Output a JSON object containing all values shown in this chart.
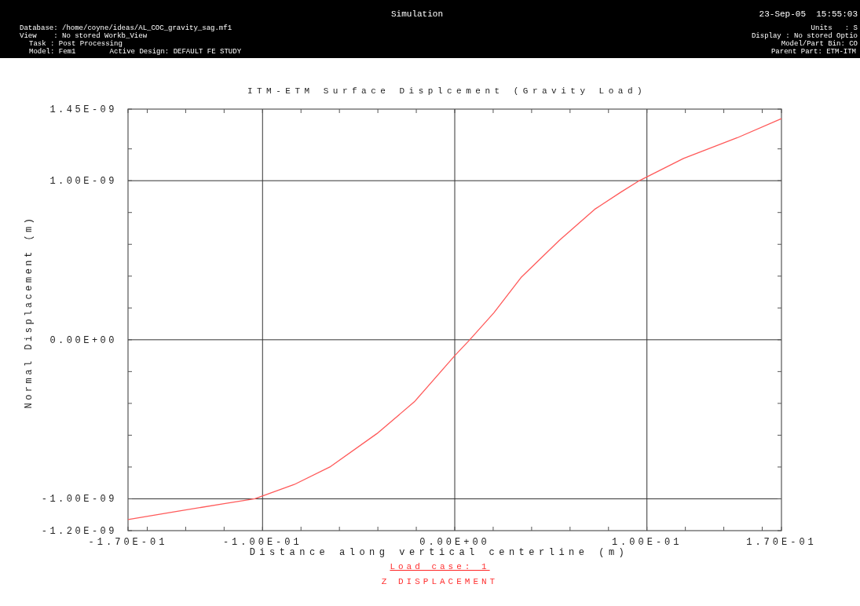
{
  "chart_data": {
    "type": "line",
    "title": "ITM-ETM Surface Displcement (Gravity Load)",
    "xlabel": "Distance along vertical centerline (m)",
    "ylabel": "Normal Displacement (m)",
    "annotations": [
      "Simulation",
      "23-Sep-05  15:55:03",
      "Database: /home/coyne/ideas/AL_COC_gravity_sag.mf1",
      "View    : No stored Workb_View",
      "Task : Post Processing",
      "Model: Fem1        Active Design: DEFAULT FE STUDY",
      "Units   : S",
      "Display : No stored Optio",
      "Model/Part Bin: CO",
      "Parent Part: ETM-ITM",
      "Load case: 1",
      "Z DISPLACEMENT"
    ],
    "x": [
      -0.17,
      -0.145,
      -0.12,
      -0.104,
      -0.0835,
      -0.065,
      -0.0405,
      -0.021,
      0,
      0.0078,
      0.0204,
      0.0344,
      0.0544,
      0.0728,
      0.0867,
      0.0953,
      0.119,
      0.147,
      0.17
    ],
    "series": [
      {
        "color": "#ff5a5a",
        "values": [
          -1.13e-09,
          -1.08e-09,
          -1.03e-09,
          -1e-09,
          -9.1e-10,
          -8e-10,
          -5.9e-10,
          -3.9e-10,
          -1e-10,
          0,
          1.7e-10,
          3.9e-10,
          6.25e-10,
          8.2e-10,
          9.3e-10,
          9.95e-10,
          1.14e-09,
          1.27e-09,
          1.39e-09
        ]
      }
    ],
    "xlim": [
      -0.17,
      0.17
    ],
    "ylim": [
      -1.2e-09,
      1.45e-09
    ],
    "xticks": [
      {
        "value": -0.17,
        "label": "-1.70E-01"
      },
      {
        "value": -0.16,
        "label": null
      },
      {
        "value": -0.14,
        "label": null
      },
      {
        "value": -0.12,
        "label": null
      },
      {
        "value": -0.1,
        "label": "-1.00E-01"
      },
      {
        "value": -0.08,
        "label": null
      },
      {
        "value": -0.06,
        "label": null
      },
      {
        "value": -0.04,
        "label": null
      },
      {
        "value": -0.02,
        "label": null
      },
      {
        "value": 0,
        "label": "0.00E+00"
      },
      {
        "value": 0.02,
        "label": null
      },
      {
        "value": 0.04,
        "label": null
      },
      {
        "value": 0.06,
        "label": null
      },
      {
        "value": 0.08,
        "label": null
      },
      {
        "value": 0.1,
        "label": "1.00E-01"
      },
      {
        "value": 0.12,
        "label": null
      },
      {
        "value": 0.14,
        "label": null
      },
      {
        "value": 0.16,
        "label": null
      },
      {
        "value": 0.17,
        "label": "1.70E-01"
      }
    ],
    "yticks": [
      {
        "value": -1.2e-09,
        "label": "-1.20E-09"
      },
      {
        "value": -1e-09,
        "label": "-1.00E-09"
      },
      {
        "value": -8e-10,
        "label": null
      },
      {
        "value": -6e-10,
        "label": null
      },
      {
        "value": -4e-10,
        "label": null
      },
      {
        "value": -2e-10,
        "label": null
      },
      {
        "value": 0,
        "label": "0.00E+00"
      },
      {
        "value": 2e-10,
        "label": null
      },
      {
        "value": 4e-10,
        "label": null
      },
      {
        "value": 6e-10,
        "label": null
      },
      {
        "value": 8e-10,
        "label": null
      },
      {
        "value": 1e-09,
        "label": "1.00E-09"
      },
      {
        "value": 1.2e-09,
        "label": null
      },
      {
        "value": 1.45e-09,
        "label": "1.45E-09"
      }
    ],
    "grid": true,
    "line_style": "solid"
  }
}
